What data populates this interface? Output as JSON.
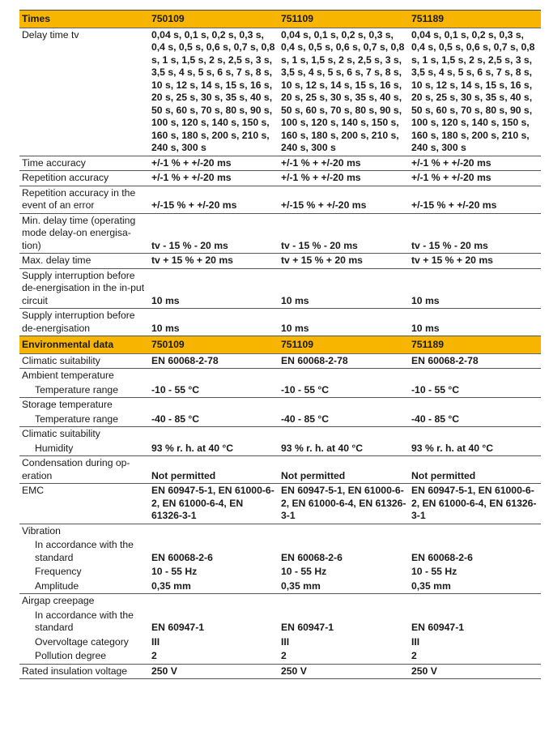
{
  "sections": [
    {
      "header": [
        "Times",
        "750109",
        "751109",
        "751189"
      ],
      "groups": [
        [
          {
            "label": "Delay time tv",
            "values": [
              "0,04 s, 0,1 s, 0,2 s, 0,3 s, 0,4 s, 0,5 s, 0,6 s, 0,7 s, 0,8 s, 1 s, 1,5 s, 2 s, 2,5 s, 3 s, 3,5 s, 4 s, 5 s, 6 s, 7 s, 8 s, 10 s, 12 s, 14 s, 15 s, 16 s, 20 s, 25 s, 30 s, 35 s, 40 s, 50 s, 60 s, 70 s, 80 s, 90 s, 100 s, 120 s, 140 s, 150 s, 160 s, 180 s, 200 s, 210 s, 240 s, 300 s",
              "0,04 s, 0,1 s, 0,2 s, 0,3 s, 0,4 s, 0,5 s, 0,6 s, 0,7 s, 0,8 s, 1 s, 1,5 s, 2 s, 2,5 s, 3 s, 3,5 s, 4 s, 5 s, 6 s, 7 s, 8 s, 10 s, 12 s, 14 s, 15 s, 16 s, 20 s, 25 s, 30 s, 35 s, 40 s, 50 s, 60 s, 70 s, 80 s, 90 s, 100 s, 120 s, 140 s, 150 s, 160 s, 180 s, 200 s, 210 s, 240 s, 300 s",
              "0,04 s, 0,1 s, 0,2 s, 0,3 s, 0,4 s, 0,5 s, 0,6 s, 0,7 s, 0,8 s, 1 s, 1,5 s, 2 s, 2,5 s, 3 s, 3,5 s, 4 s, 5 s, 6 s, 7 s, 8 s, 10 s, 12 s, 14 s, 15 s, 16 s, 20 s, 25 s, 30 s, 35 s, 40 s, 50 s, 60 s, 70 s, 80 s, 90 s, 100 s, 120 s, 140 s, 150 s, 160 s, 180 s, 200 s, 210 s, 240 s, 300 s"
            ]
          }
        ],
        [
          {
            "label": "Time accuracy",
            "values": [
              "+/-1 % + +/-20 ms",
              "+/-1 % + +/-20 ms",
              "+/-1 % + +/-20 ms"
            ]
          }
        ],
        [
          {
            "label": "Repetition accuracy",
            "values": [
              "+/-1 % + +/-20 ms",
              "+/-1 % + +/-20 ms",
              "+/-1 % + +/-20 ms"
            ]
          }
        ],
        [
          {
            "label": "Repetition accuracy in the event of an error",
            "values": [
              "+/-15 % + +/-20 ms",
              "+/-15 % + +/-20 ms",
              "+/-15 % + +/-20 ms"
            ]
          }
        ],
        [
          {
            "label": "Min. delay time (operating mode delay-on energisa-tion)",
            "values": [
              "tv - 15 % - 20 ms",
              "tv - 15 % - 20 ms",
              "tv - 15 % - 20 ms"
            ]
          }
        ],
        [
          {
            "label": "Max. delay time",
            "values": [
              "tv + 15 % + 20 ms",
              "tv + 15 % + 20 ms",
              "tv + 15 % + 20 ms"
            ]
          }
        ],
        [
          {
            "label": "Supply interruption before de-energisation in the in-put circuit",
            "values": [
              "10 ms",
              "10 ms",
              "10 ms"
            ]
          }
        ],
        [
          {
            "label": "Supply interruption before de-energisation",
            "values": [
              "10 ms",
              "10 ms",
              "10 ms"
            ]
          }
        ]
      ]
    },
    {
      "header": [
        "Environmental data",
        "750109",
        "751109",
        "751189"
      ],
      "groups": [
        [
          {
            "label": "Climatic suitability",
            "values": [
              "EN 60068-2-78",
              "EN 60068-2-78",
              "EN 60068-2-78"
            ]
          }
        ],
        [
          {
            "label": "Ambient temperature",
            "values": [
              "",
              "",
              ""
            ]
          },
          {
            "label": "Temperature range",
            "indent": true,
            "values": [
              "-10 - 55 °C",
              "-10 - 55 °C",
              "-10 - 55 °C"
            ]
          }
        ],
        [
          {
            "label": "Storage temperature",
            "values": [
              "",
              "",
              ""
            ]
          },
          {
            "label": "Temperature range",
            "indent": true,
            "values": [
              "-40 - 85 °C",
              "-40 - 85 °C",
              "-40 - 85 °C"
            ]
          }
        ],
        [
          {
            "label": "Climatic suitability",
            "values": [
              "",
              "",
              ""
            ]
          },
          {
            "label": "Humidity",
            "indent": true,
            "values": [
              "93 % r. h. at 40 °C",
              "93 % r. h. at 40 °C",
              "93 % r. h. at 40 °C"
            ]
          }
        ],
        [
          {
            "label": "Condensation during op-eration",
            "values": [
              "Not permitted",
              "Not permitted",
              "Not permitted"
            ]
          }
        ],
        [
          {
            "label": "EMC",
            "values": [
              "EN 60947-5-1, EN 61000-6-2, EN 61000-6-4, EN 61326-3-1",
              "EN 60947-5-1, EN 61000-6-2, EN 61000-6-4, EN 61326-3-1",
              "EN 60947-5-1, EN 61000-6-2, EN 61000-6-4, EN 61326-3-1"
            ]
          }
        ],
        [
          {
            "label": "Vibration",
            "values": [
              "",
              "",
              ""
            ]
          },
          {
            "label": "In accordance with the standard",
            "indent": true,
            "values": [
              "EN 60068-2-6",
              "EN 60068-2-6",
              "EN 60068-2-6"
            ]
          },
          {
            "label": "Frequency",
            "indent": true,
            "values": [
              "10 - 55 Hz",
              "10 - 55 Hz",
              "10 - 55 Hz"
            ]
          },
          {
            "label": "Amplitude",
            "indent": true,
            "values": [
              "0,35 mm",
              "0,35 mm",
              "0,35 mm"
            ]
          }
        ],
        [
          {
            "label": "Airgap creepage",
            "values": [
              "",
              "",
              ""
            ]
          },
          {
            "label": "In accordance with the standard",
            "indent": true,
            "values": [
              "EN 60947-1",
              "EN 60947-1",
              "EN 60947-1"
            ]
          },
          {
            "label": "Overvoltage category",
            "indent": true,
            "values": [
              "III",
              "III",
              "III"
            ]
          },
          {
            "label": "Pollution degree",
            "indent": true,
            "values": [
              "2",
              "2",
              "2"
            ]
          }
        ],
        [
          {
            "label": "Rated insulation voltage",
            "values": [
              "250 V",
              "250 V",
              "250 V"
            ]
          }
        ]
      ]
    }
  ]
}
